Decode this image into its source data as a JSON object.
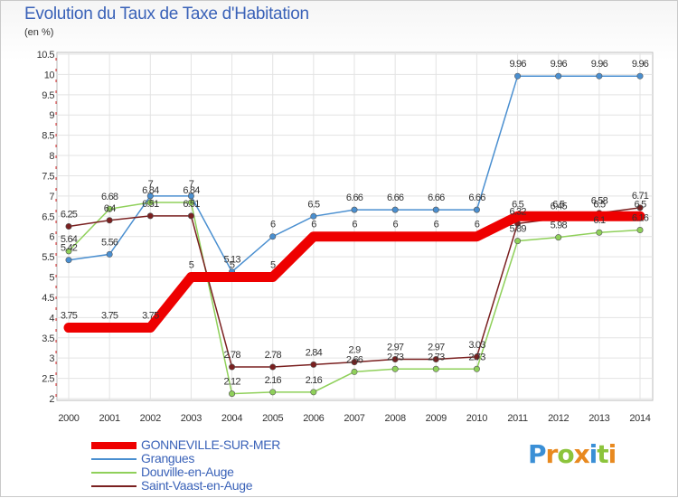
{
  "header": {
    "title": "Evolution du Taux de Taxe d'Habitation",
    "unit": "(en %)"
  },
  "logo": {
    "text": "Proxiti",
    "letters": [
      "P",
      "r",
      "o",
      "x",
      "i",
      "t",
      "i"
    ],
    "colors": [
      "#3a8fd6",
      "#e8891f",
      "#8cc43c",
      "#e8891f",
      "#3a8fd6",
      "#8cc43c",
      "#e8891f"
    ]
  },
  "chart_data": {
    "type": "line",
    "title": "Evolution du Taux de Taxe d'Habitation",
    "subtitle": "(en %)",
    "x": [
      "2000",
      "2001",
      "2002",
      "2003",
      "2004",
      "2005",
      "2006",
      "2007",
      "2008",
      "2009",
      "2010",
      "2011",
      "2012",
      "2013",
      "2014"
    ],
    "ylim": [
      2,
      10.5
    ],
    "yticks": [
      "2",
      "2.5",
      "3",
      "3.5",
      "4",
      "4.5",
      "5",
      "5.5",
      "6",
      "6.5",
      "7",
      "7.5",
      "8",
      "8.5",
      "9",
      "9.5",
      "10",
      "10.5"
    ],
    "grid": true,
    "legend_position": "bottom-left",
    "series": [
      {
        "name": "GONNEVILLE-SUR-MER",
        "color": "#ee0000",
        "emphasis": true,
        "values": [
          3.75,
          3.75,
          3.75,
          5,
          5,
          5,
          6,
          6,
          6,
          6,
          6,
          6.5,
          6.5,
          6.5,
          6.5
        ],
        "labels": [
          "3.75",
          "3.75",
          "3.75",
          "5",
          "5",
          "5",
          "6",
          "6",
          "6",
          "6",
          "6",
          "6.5",
          "6.5",
          "6.5",
          "6.5"
        ]
      },
      {
        "name": "Grangues",
        "color": "#4a8fd0",
        "values": [
          5.42,
          5.56,
          7,
          7,
          5.13,
          6,
          6.5,
          6.66,
          6.66,
          6.66,
          6.66,
          9.96,
          9.96,
          9.96,
          9.96
        ],
        "labels": [
          "5.42",
          "5.56",
          "7",
          "7",
          "5.13",
          "6",
          "6.5",
          "6.66",
          "6.66",
          "6.66",
          "6.66",
          "9.96",
          "9.96",
          "9.96",
          "9.96"
        ]
      },
      {
        "name": "Douville-en-Auge",
        "color": "#8fd05a",
        "values": [
          5.64,
          6.68,
          6.84,
          6.84,
          2.12,
          2.16,
          2.16,
          2.66,
          2.73,
          2.73,
          2.73,
          5.89,
          5.98,
          6.1,
          6.16
        ],
        "labels": [
          "5.64",
          "6.68",
          "6.84",
          "6.84",
          "2.12",
          "2.16",
          "2.16",
          "2.66",
          "2.73",
          "2.73",
          "2.73",
          "5.89",
          "5.98",
          "6.1",
          "6.16"
        ]
      },
      {
        "name": "Saint-Vaast-en-Auge",
        "color": "#7a2020",
        "values": [
          6.25,
          6.4,
          6.51,
          6.51,
          2.78,
          2.78,
          2.84,
          2.9,
          2.97,
          2.97,
          3.03,
          6.32,
          6.45,
          6.58,
          6.71
        ],
        "labels": [
          "6.25",
          "6.4",
          "6.51",
          "6.51",
          "2.78",
          "2.78",
          "2.84",
          "2.9",
          "2.97",
          "2.97",
          "3.03",
          "6.32",
          "6.45",
          "6.58",
          "6.71"
        ]
      }
    ]
  }
}
